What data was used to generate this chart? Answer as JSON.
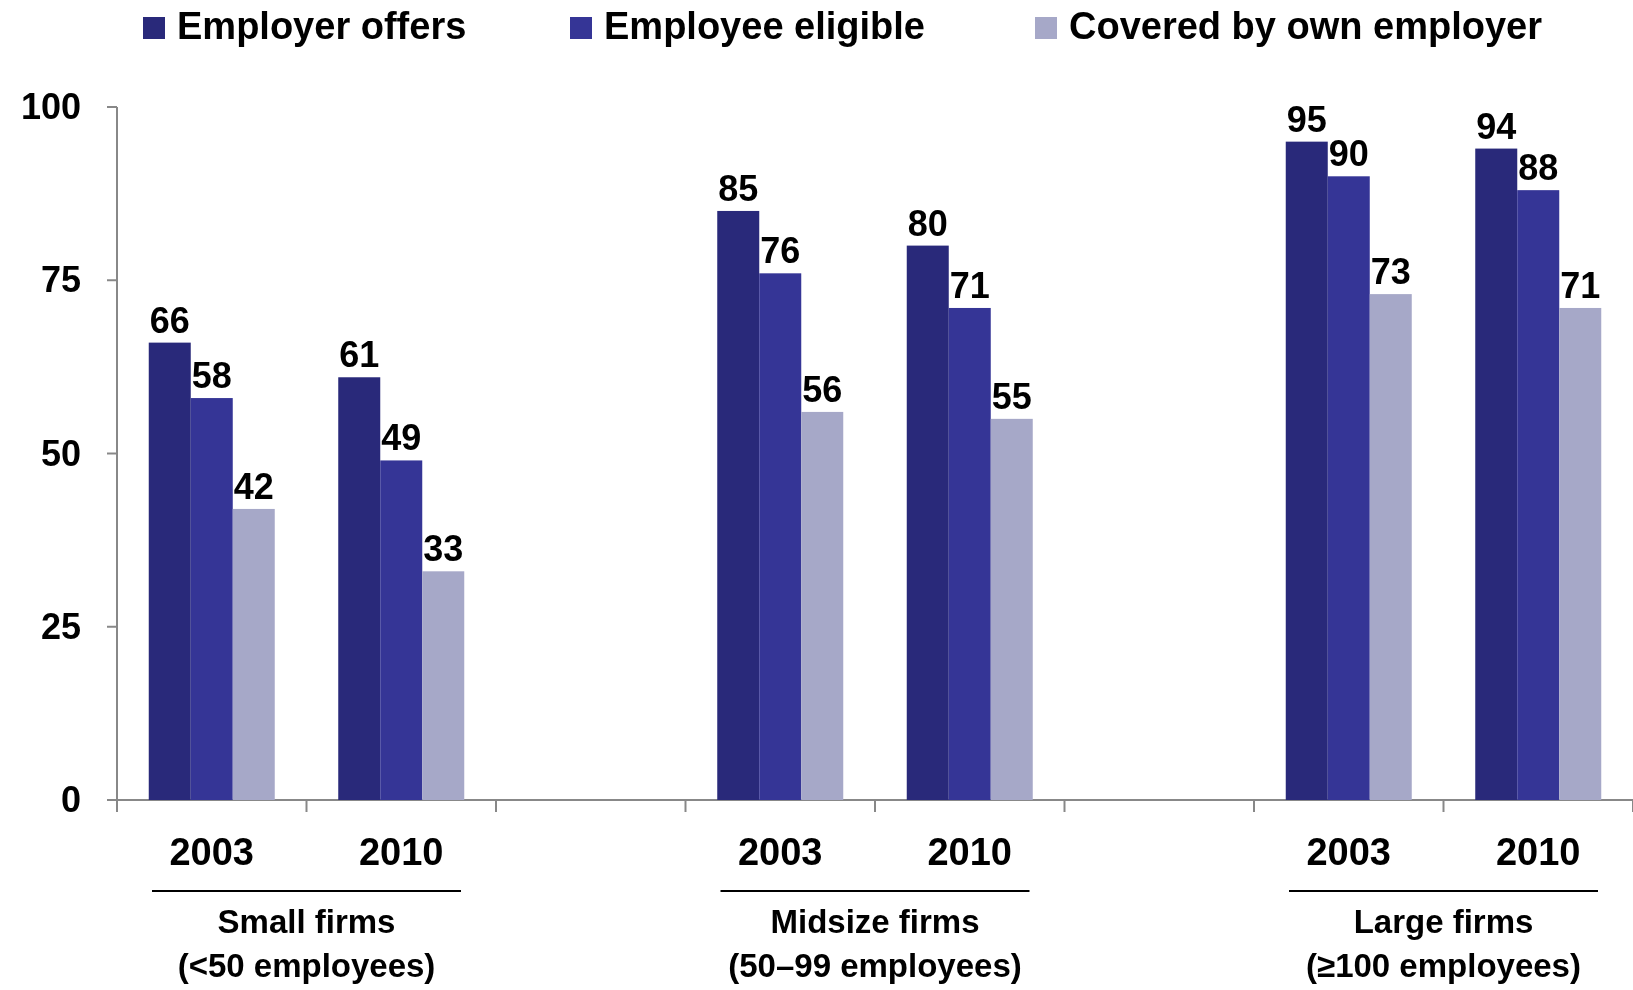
{
  "chart_data": {
    "type": "bar",
    "categories": [
      "2003",
      "2010",
      null,
      "2003",
      "2010",
      null,
      "2003",
      "2010"
    ],
    "series": [
      {
        "name": "Employer offers",
        "color": "#29297a",
        "values": [
          66,
          61,
          null,
          85,
          80,
          null,
          95,
          94
        ]
      },
      {
        "name": "Employee eligible",
        "color": "#353596",
        "values": [
          58,
          49,
          null,
          76,
          71,
          null,
          90,
          88
        ]
      },
      {
        "name": "Covered by own employer",
        "color": "#a6a8c8",
        "values": [
          42,
          33,
          null,
          56,
          55,
          null,
          73,
          71
        ]
      }
    ],
    "ylim": [
      0,
      100
    ],
    "yticks": [
      0,
      25,
      50,
      75,
      100
    ],
    "grid": false,
    "legend": "top",
    "data_labels": true,
    "annotations": [
      "Small firms\n(<50 employees)",
      "Midsize firms\n(50–99 employees)",
      "Large firms\n(≥100 employees)"
    ]
  }
}
